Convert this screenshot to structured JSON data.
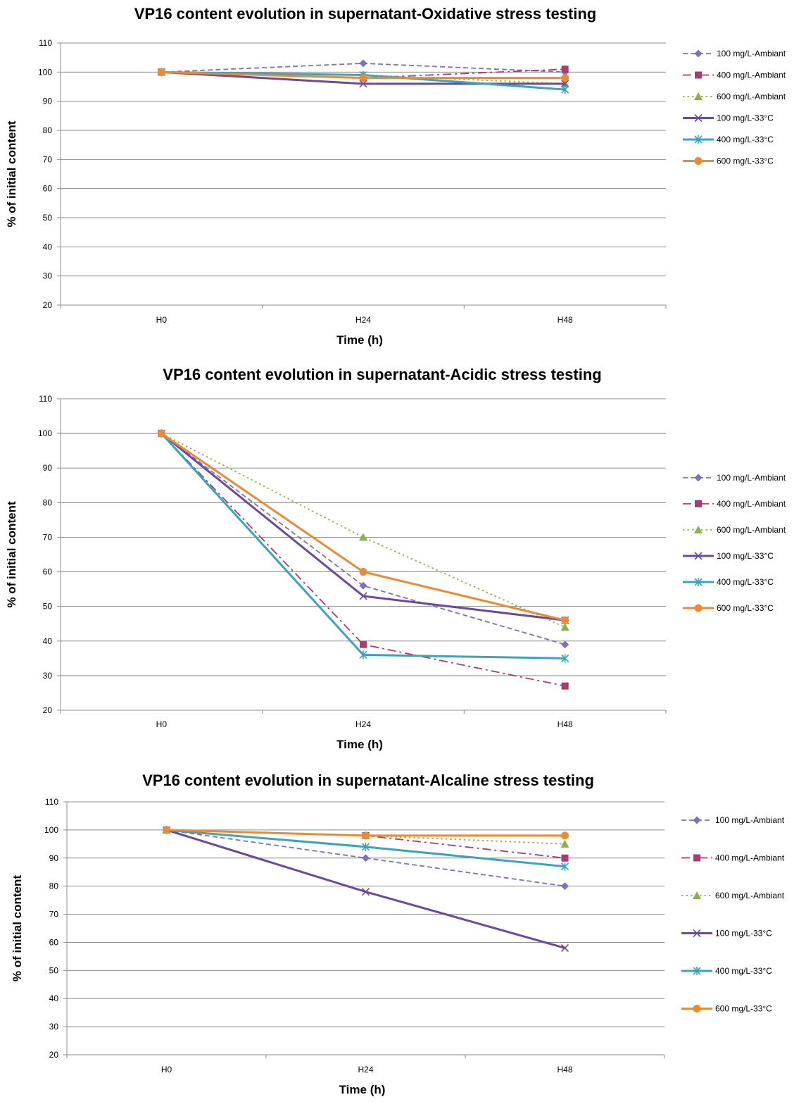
{
  "chart_data": [
    {
      "type": "line",
      "title": "VP16 content evolution in supernatant-Oxidative stress testing",
      "xlabel": "Time (h)",
      "ylabel": "% of initial content",
      "categories": [
        "H0",
        "H24",
        "H48"
      ],
      "ylim": [
        20,
        110
      ],
      "yticks": [
        20,
        30,
        40,
        50,
        60,
        70,
        80,
        90,
        100,
        110
      ],
      "grid": true,
      "legend_position": "right",
      "series": [
        {
          "name": "100 mg/L-Ambiant",
          "values": [
            100,
            103,
            100
          ]
        },
        {
          "name": "400 mg/L-Ambiant",
          "values": [
            100,
            98,
            101
          ]
        },
        {
          "name": "600 mg/L-Ambiant",
          "values": [
            100,
            99,
            96
          ]
        },
        {
          "name": "100 mg/L-33°C",
          "values": [
            100,
            96,
            96
          ]
        },
        {
          "name": "400 mg/L-33°C",
          "values": [
            100,
            99,
            94
          ]
        },
        {
          "name": "600 mg/L-33°C",
          "values": [
            100,
            98,
            98
          ]
        }
      ]
    },
    {
      "type": "line",
      "title": "VP16 content evolution in supernatant-Acidic stress testing",
      "xlabel": "Time (h)",
      "ylabel": "% of initial content",
      "categories": [
        "H0",
        "H24",
        "H48"
      ],
      "ylim": [
        20,
        110
      ],
      "yticks": [
        20,
        30,
        40,
        50,
        60,
        70,
        80,
        90,
        100,
        110
      ],
      "grid": true,
      "legend_position": "right",
      "series": [
        {
          "name": "100 mg/L-Ambiant",
          "values": [
            100,
            56,
            39
          ]
        },
        {
          "name": "400 mg/L-Ambiant",
          "values": [
            100,
            39,
            27
          ]
        },
        {
          "name": "600 mg/L-Ambiant",
          "values": [
            100,
            70,
            44
          ]
        },
        {
          "name": "100 mg/L-33°C",
          "values": [
            100,
            53,
            46
          ]
        },
        {
          "name": "400 mg/L-33°C",
          "values": [
            100,
            36,
            35
          ]
        },
        {
          "name": "600 mg/L-33°C",
          "values": [
            100,
            60,
            46
          ]
        }
      ]
    },
    {
      "type": "line",
      "title": "VP16 content evolution in supernatant-Alcaline stress testing",
      "xlabel": "Time (h)",
      "ylabel": "% of initial content",
      "categories": [
        "H0",
        "H24",
        "H48"
      ],
      "ylim": [
        20,
        110
      ],
      "yticks": [
        20,
        30,
        40,
        50,
        60,
        70,
        80,
        90,
        100,
        110
      ],
      "grid": true,
      "legend_position": "right",
      "series": [
        {
          "name": "100 mg/L-Ambiant",
          "values": [
            100,
            90,
            80
          ]
        },
        {
          "name": "400 mg/L-Ambiant",
          "values": [
            100,
            98,
            90
          ]
        },
        {
          "name": "600 mg/L-Ambiant",
          "values": [
            100,
            98,
            95
          ]
        },
        {
          "name": "100 mg/L-33°C",
          "values": [
            100,
            78,
            58
          ]
        },
        {
          "name": "400 mg/L-33°C",
          "values": [
            100,
            94,
            87
          ]
        },
        {
          "name": "600 mg/L-33°C",
          "values": [
            100,
            98,
            98
          ]
        }
      ]
    }
  ],
  "series_styles": [
    {
      "color": "#7B72B8",
      "dash": "dashed",
      "marker": "diamond"
    },
    {
      "color": "#A93B6F",
      "dash": "dashdot",
      "marker": "square"
    },
    {
      "color": "#8DB04A",
      "dash": "dotted",
      "marker": "triangle"
    },
    {
      "color": "#6A4A9C",
      "dash": "solid",
      "marker": "x"
    },
    {
      "color": "#3AA3BD",
      "dash": "solid",
      "marker": "asterisk"
    },
    {
      "color": "#EA8B34",
      "dash": "solid",
      "marker": "circle"
    }
  ]
}
